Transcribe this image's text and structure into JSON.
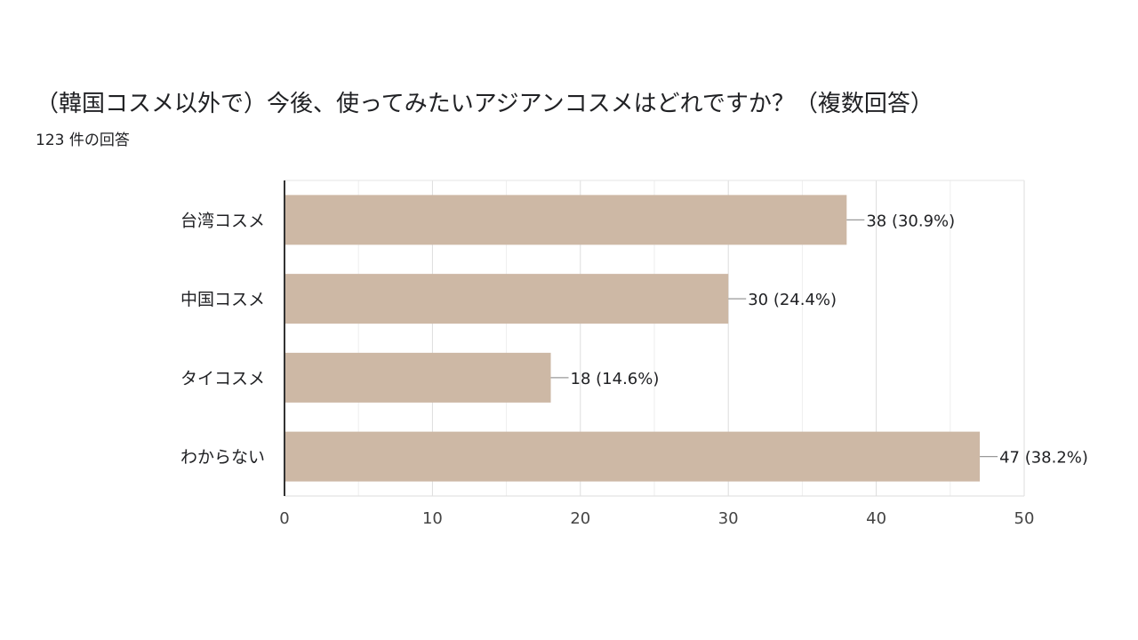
{
  "chart_data": {
    "type": "bar",
    "orientation": "horizontal",
    "title": "（韓国コスメ以外で）今後、使ってみたいアジアンコスメはどれですか？（複数回答）",
    "subtitle": "123 件の回答",
    "categories": [
      "台湾コスメ",
      "中国コスメ",
      "タイコスメ",
      "わからない"
    ],
    "values": [
      38,
      30,
      18,
      47
    ],
    "value_labels": [
      "38 (30.9%)",
      "30 (24.4%)",
      "18 (14.6%)",
      "47 (38.2%)"
    ],
    "xlim": [
      0,
      50
    ],
    "xticks": [
      "0",
      "10",
      "20",
      "30",
      "40",
      "50"
    ],
    "grid": true,
    "bar_color": "#cdb8a5"
  }
}
